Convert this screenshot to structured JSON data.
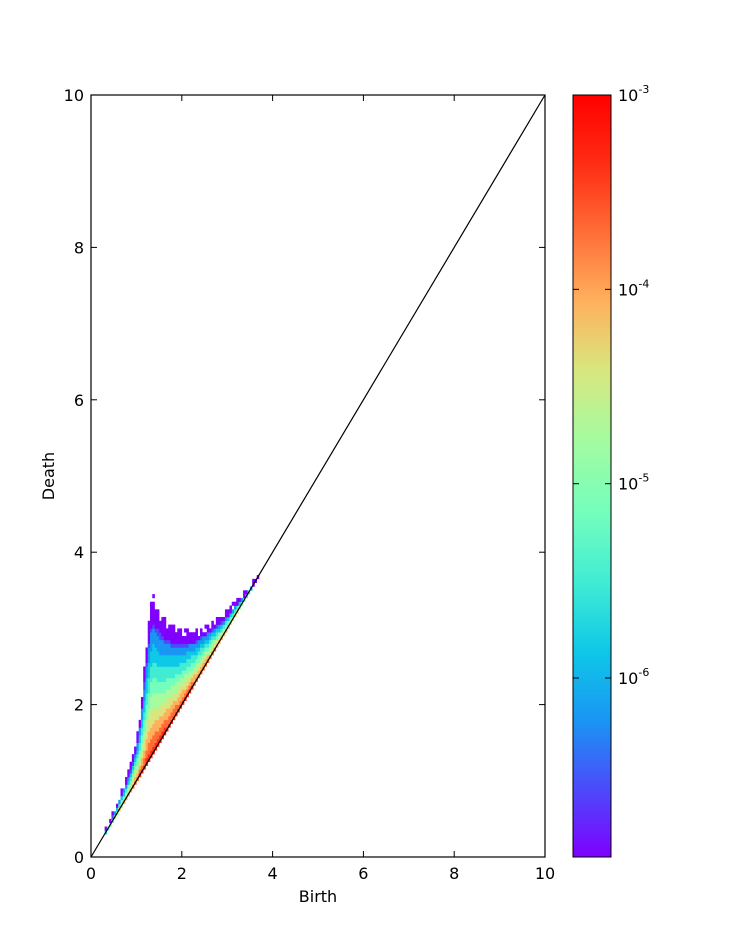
{
  "chart_data": {
    "type": "heatmap",
    "title": "",
    "xlabel": "Birth",
    "ylabel": "Death",
    "xlim": [
      0,
      10
    ],
    "ylim": [
      0,
      10
    ],
    "x_ticks": [
      "0",
      "2",
      "4",
      "6",
      "8",
      "10"
    ],
    "y_ticks": [
      "0",
      "2",
      "4",
      "6",
      "8",
      "10"
    ],
    "x_tick_values": [
      0,
      2,
      4,
      6,
      8,
      10
    ],
    "y_tick_values": [
      0,
      2,
      4,
      6,
      8,
      10
    ],
    "diagonal_line": {
      "from": [
        0,
        0
      ],
      "to": [
        10,
        10
      ],
      "color": "#000000"
    },
    "density_region": {
      "description_points": [
        {
          "birth": 0.3,
          "death": 0.35
        },
        {
          "birth": 1.0,
          "death": 1.4
        },
        {
          "birth": 1.35,
          "death": 3.5
        },
        {
          "birth": 2.0,
          "death": 3.0
        },
        {
          "birth": 3.7,
          "death": 3.7
        }
      ],
      "upper_boundary": [
        [
          0.3,
          0.35
        ],
        [
          0.5,
          0.6
        ],
        [
          0.7,
          0.9
        ],
        [
          0.9,
          1.25
        ],
        [
          1.05,
          1.7
        ],
        [
          1.15,
          2.3
        ],
        [
          1.25,
          3.0
        ],
        [
          1.35,
          3.45
        ],
        [
          1.5,
          3.2
        ],
        [
          1.7,
          3.05
        ],
        [
          2.0,
          2.95
        ],
        [
          2.3,
          2.95
        ],
        [
          2.6,
          3.05
        ],
        [
          2.9,
          3.15
        ],
        [
          3.2,
          3.35
        ],
        [
          3.5,
          3.55
        ],
        [
          3.7,
          3.7
        ]
      ]
    },
    "colorbar": {
      "scale": "log",
      "min": 1.2e-07,
      "max": 0.001,
      "tick_labels": [
        {
          "base": "10",
          "exp": "-3",
          "value": 0.001
        },
        {
          "base": "10",
          "exp": "-4",
          "value": 0.0001
        },
        {
          "base": "10",
          "exp": "-5",
          "value": 1e-05
        },
        {
          "base": "10",
          "exp": "-6",
          "value": 1e-06
        }
      ],
      "colormap": [
        "#7f00ff",
        "#4b4bfb",
        "#1996f3",
        "#0ec8e7",
        "#40ecd4",
        "#73febd",
        "#a6fb9f",
        "#d9e67e",
        "#ffb05c",
        "#ff6d37",
        "#ff2c13",
        "#ff0000"
      ]
    }
  }
}
